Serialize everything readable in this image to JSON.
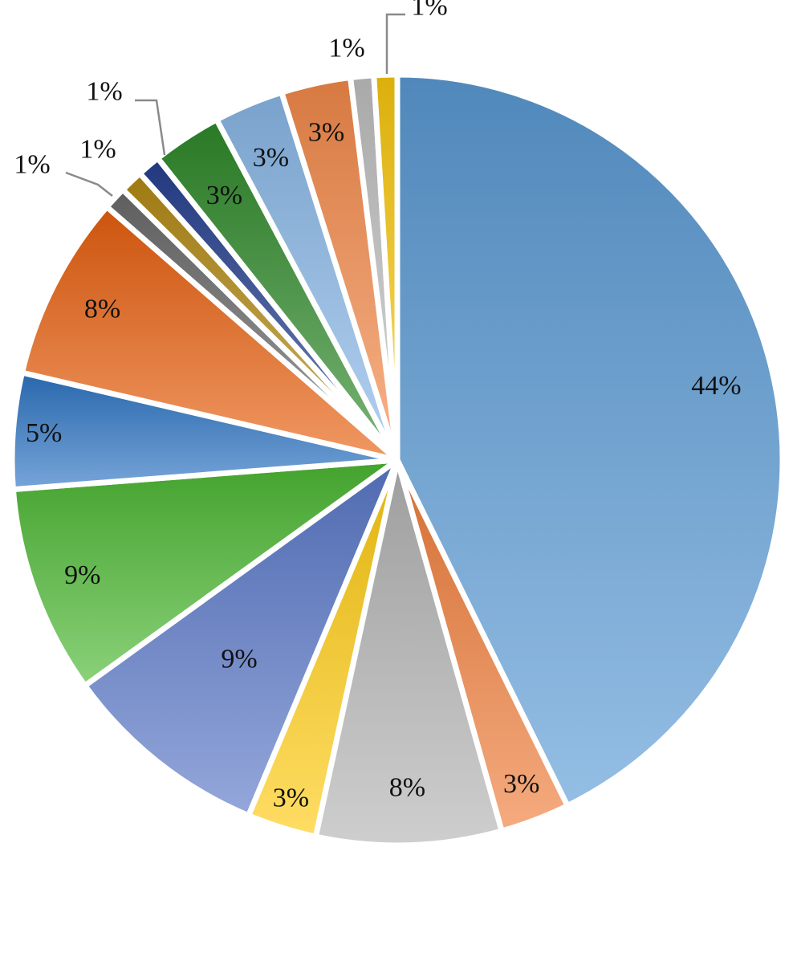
{
  "chart_data": {
    "type": "pie",
    "start_angle_deg": 0,
    "direction": "clockwise",
    "slices": [
      {
        "value": 44,
        "label": "44%",
        "color": "#5b9bd5"
      },
      {
        "value": 3,
        "label": "3%",
        "color": "#f07d3a"
      },
      {
        "value": 8,
        "label": "8%",
        "color": "#b3b3b3"
      },
      {
        "value": 3,
        "label": "3%",
        "color": "#ffcb10"
      },
      {
        "value": 9,
        "label": "9%",
        "color": "#5a78c8"
      },
      {
        "value": 9,
        "label": "9%",
        "color": "#4cb833"
      },
      {
        "value": 5,
        "label": "5%",
        "color": "#2e75c4"
      },
      {
        "value": 8,
        "label": "8%",
        "color": "#e8600f"
      },
      {
        "value": 1,
        "label": "1%",
        "color": "#6b6b6b"
      },
      {
        "value": 1,
        "label": "1%",
        "color": "#b38a14"
      },
      {
        "value": 1,
        "label": "1%",
        "color": "#26408f"
      },
      {
        "value": 3,
        "label": "3%",
        "color": "#2f8a2a"
      },
      {
        "value": 3,
        "label": "3%",
        "color": "#8ab8e8"
      },
      {
        "value": 3,
        "label": "3%",
        "color": "#f48a4a"
      },
      {
        "value": 1,
        "label": "1%",
        "color": "#c0c0c0"
      },
      {
        "value": 1,
        "label": "1%",
        "color": "#f9c80e"
      }
    ]
  }
}
